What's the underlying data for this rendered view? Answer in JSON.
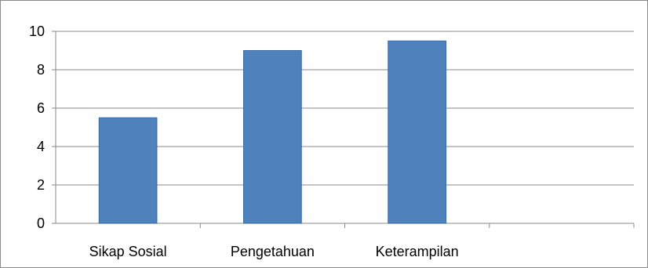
{
  "chart_data": {
    "type": "bar",
    "title": "",
    "xlabel": "",
    "ylabel": "",
    "categories": [
      "Sikap Sosial",
      "Pengetahuan",
      "Keterampilan",
      ""
    ],
    "values": [
      5.5,
      9.0,
      9.5,
      null
    ],
    "ylim": [
      0,
      10
    ],
    "yticks": [
      0,
      2,
      4,
      6,
      8,
      10
    ],
    "ytick_labels": [
      "0",
      "2",
      "4",
      "6",
      "8",
      "10"
    ],
    "grid": true,
    "legend": "none",
    "colors": {
      "bar": "#4f81bd",
      "bar_edge": "#3a6aa0",
      "grid": "#888888",
      "axis": "#888888"
    }
  }
}
